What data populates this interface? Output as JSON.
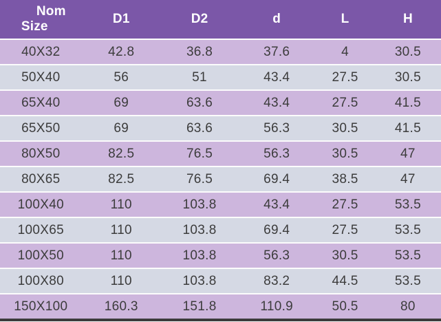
{
  "table": {
    "title_semantic": "pipe-fitting-dimensions-table",
    "header": {
      "nom_line1": "Nom",
      "nom_line2": "Size",
      "cols": [
        "D1",
        "D2",
        "d",
        "L",
        "H"
      ]
    },
    "column_keys": [
      "nom-size",
      "d1",
      "d2",
      "d",
      "l",
      "h"
    ],
    "rows": [
      [
        "40X32",
        "42.8",
        "36.8",
        "37.6",
        "4",
        "30.5"
      ],
      [
        "50X40",
        "56",
        "51",
        "43.4",
        "27.5",
        "30.5"
      ],
      [
        "65X40",
        "69",
        "63.6",
        "43.4",
        "27.5",
        "41.5"
      ],
      [
        "65X50",
        "69",
        "63.6",
        "56.3",
        "30.5",
        "41.5"
      ],
      [
        "80X50",
        "82.5",
        "76.5",
        "56.3",
        "30.5",
        "47"
      ],
      [
        "80X65",
        "82.5",
        "76.5",
        "69.4",
        "38.5",
        "47"
      ],
      [
        "100X40",
        "110",
        "103.8",
        "43.4",
        "27.5",
        "53.5"
      ],
      [
        "100X65",
        "110",
        "103.8",
        "69.4",
        "27.5",
        "53.5"
      ],
      [
        "100X50",
        "110",
        "103.8",
        "56.3",
        "30.5",
        "53.5"
      ],
      [
        "100X80",
        "110",
        "103.8",
        "83.2",
        "44.5",
        "53.5"
      ],
      [
        "150X100",
        "160.3",
        "151.8",
        "110.9",
        "50.5",
        "80"
      ]
    ],
    "colors": {
      "header_bg": "#7B57A8",
      "header_text": "#FFFFFF",
      "row_lavender": "#CDB6DD",
      "row_gray_blue": "#D5D9E4",
      "row_separator": "#FCFCFC",
      "body_text": "#3C3C3C",
      "bottom_border": "#3B3B3B"
    }
  }
}
